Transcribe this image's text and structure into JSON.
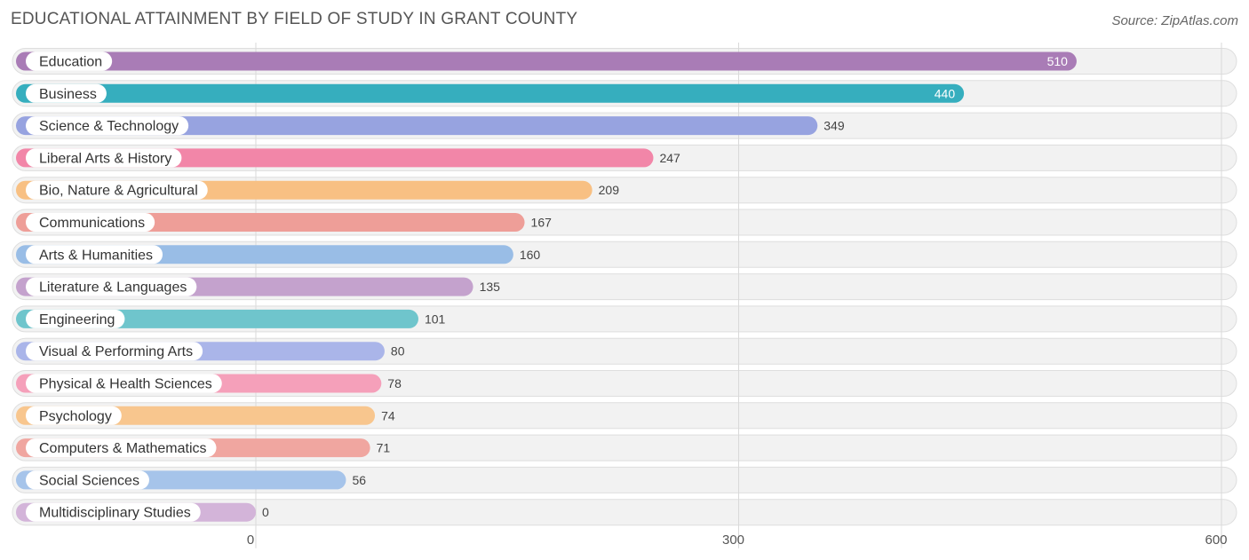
{
  "chart_data": {
    "type": "bar",
    "orientation": "horizontal",
    "title": "EDUCATIONAL ATTAINMENT BY FIELD OF STUDY IN GRANT COUNTY",
    "source": "Source: ZipAtlas.com",
    "xlabel": "",
    "ylabel": "",
    "xlim": [
      0,
      600
    ],
    "ticks": [
      0,
      300,
      600
    ],
    "grid": true,
    "categories": [
      "Education",
      "Business",
      "Science & Technology",
      "Liberal Arts & History",
      "Bio, Nature & Agricultural",
      "Communications",
      "Arts & Humanities",
      "Literature & Languages",
      "Engineering",
      "Visual & Performing Arts",
      "Physical & Health Sciences",
      "Psychology",
      "Computers & Mathematics",
      "Social Sciences",
      "Multidisciplinary Studies"
    ],
    "values": [
      510,
      440,
      349,
      247,
      209,
      167,
      160,
      135,
      101,
      80,
      78,
      74,
      71,
      56,
      0
    ],
    "colors": [
      "#a97cb6",
      "#36aebe",
      "#97a3e0",
      "#f286a8",
      "#f8c083",
      "#ee9e98",
      "#99bde6",
      "#c4a2cd",
      "#6fc5cc",
      "#aab5e9",
      "#f5a0ba",
      "#f8c68e",
      "#f0a6a0",
      "#a6c4ea",
      "#d3b4d9"
    ]
  }
}
